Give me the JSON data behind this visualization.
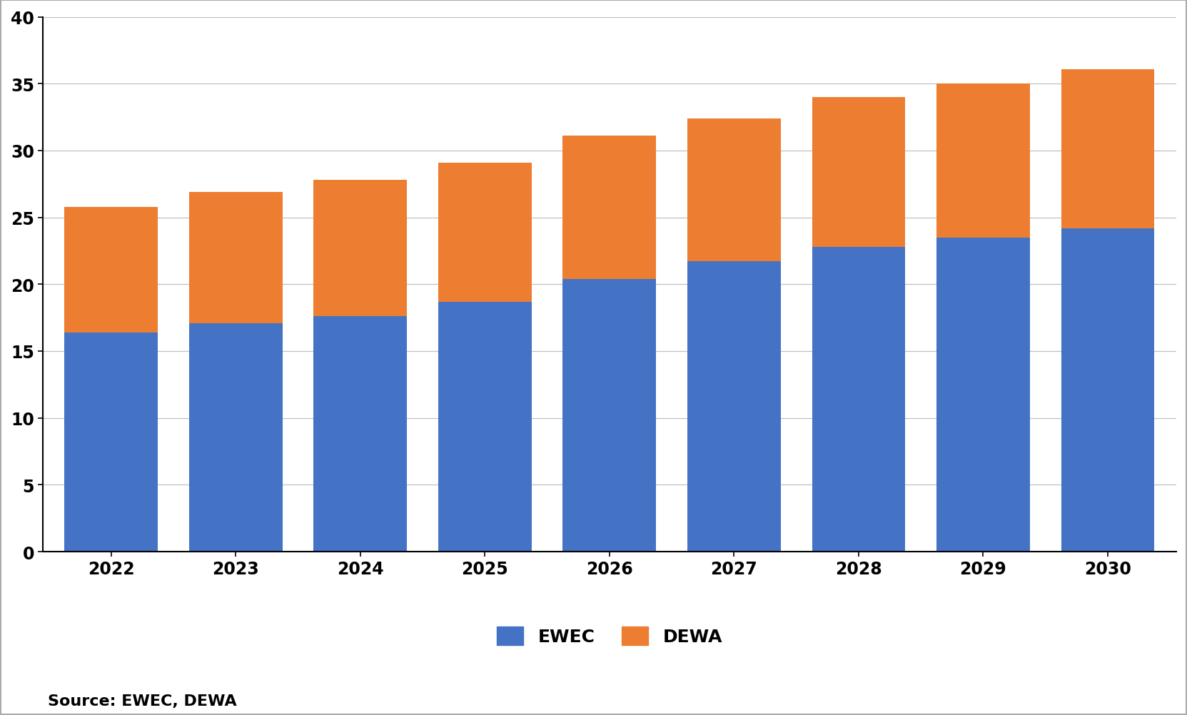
{
  "years": [
    2022,
    2023,
    2024,
    2025,
    2026,
    2027,
    2028,
    2029,
    2030
  ],
  "ewec": [
    16.4,
    17.1,
    17.6,
    18.7,
    20.4,
    21.7,
    22.8,
    23.5,
    24.2
  ],
  "dewa": [
    9.4,
    9.8,
    10.2,
    10.4,
    10.7,
    10.7,
    11.2,
    11.5,
    11.9
  ],
  "ewec_color": "#4472C4",
  "dewa_color": "#ED7D31",
  "ylim": [
    0,
    40
  ],
  "yticks": [
    0,
    5,
    10,
    15,
    20,
    25,
    30,
    35,
    40
  ],
  "legend_ewec": "EWEC",
  "legend_dewa": "DEWA",
  "source_text": "Source: EWEC, DEWA",
  "background_color": "#FFFFFF",
  "grid_color": "#C0C0C0",
  "bar_width": 0.75,
  "legend_fontsize": 18,
  "tick_fontsize": 17,
  "source_fontsize": 16,
  "border_color": "#AAAAAA",
  "border_linewidth": 1.5
}
